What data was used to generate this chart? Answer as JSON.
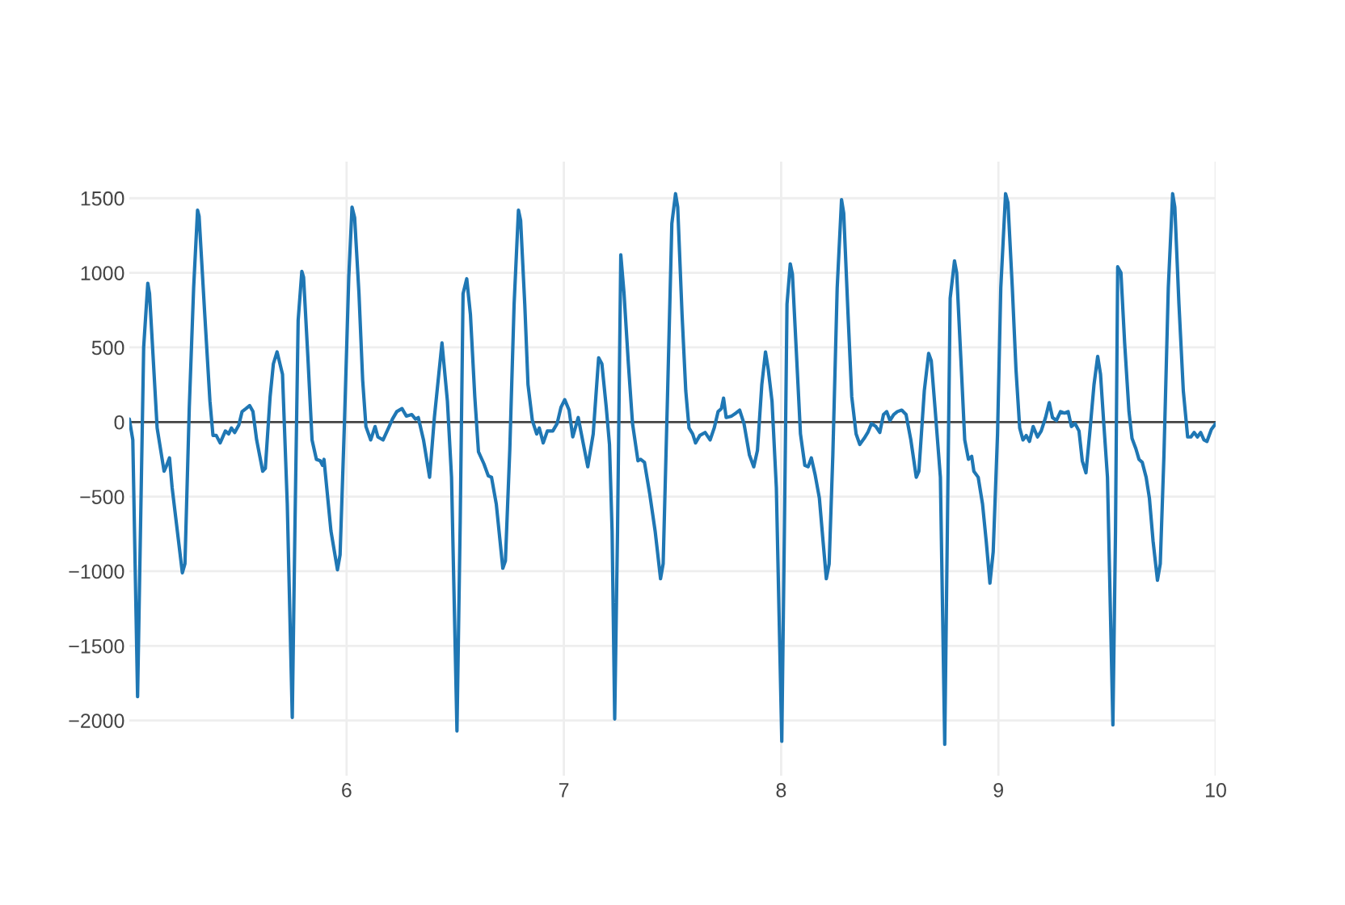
{
  "chart_data": {
    "type": "line",
    "color": "#1f77b4",
    "x": [
      5.0,
      5.016,
      5.038,
      5.066,
      5.085,
      5.093,
      5.128,
      5.16,
      5.172,
      5.185,
      5.197,
      5.244,
      5.256,
      5.276,
      5.296,
      5.314,
      5.321,
      5.346,
      5.371,
      5.385,
      5.4,
      5.418,
      5.442,
      5.457,
      5.47,
      5.485,
      5.504,
      5.519,
      5.537,
      5.554,
      5.569,
      5.586,
      5.614,
      5.626,
      5.648,
      5.663,
      5.68,
      5.705,
      5.727,
      5.75,
      5.762,
      5.777,
      5.794,
      5.802,
      5.822,
      5.841,
      5.861,
      5.879,
      5.889,
      5.896,
      5.928,
      5.958,
      5.97,
      5.99,
      6.01,
      6.025,
      6.037,
      6.057,
      6.074,
      6.089,
      6.111,
      6.131,
      6.144,
      6.168,
      6.193,
      6.211,
      6.231,
      6.255,
      6.275,
      6.3,
      6.317,
      6.33,
      6.354,
      6.382,
      6.404,
      6.439,
      6.464,
      6.483,
      6.508,
      6.523,
      6.536,
      6.553,
      6.57,
      6.59,
      6.607,
      6.632,
      6.652,
      6.667,
      6.689,
      6.719,
      6.731,
      6.751,
      6.771,
      6.791,
      6.801,
      6.82,
      6.835,
      6.855,
      6.875,
      6.887,
      6.905,
      6.924,
      6.949,
      6.969,
      6.987,
      7.004,
      7.024,
      7.041,
      7.066,
      7.086,
      7.11,
      7.135,
      7.16,
      7.175,
      7.195,
      7.21,
      7.222,
      7.234,
      7.247,
      7.262,
      7.277,
      7.297,
      7.316,
      7.341,
      7.353,
      7.371,
      7.395,
      7.42,
      7.445,
      7.457,
      7.477,
      7.497,
      7.514,
      7.524,
      7.544,
      7.561,
      7.576,
      7.593,
      7.606,
      7.626,
      7.65,
      7.673,
      7.692,
      7.71,
      7.725,
      7.735,
      7.747,
      7.772,
      7.792,
      7.809,
      7.829,
      7.854,
      7.874,
      7.891,
      7.911,
      7.928,
      7.941,
      7.958,
      7.978,
      8.003,
      8.015,
      8.027,
      8.042,
      8.052,
      8.069,
      8.089,
      8.109,
      8.124,
      8.139,
      8.156,
      8.176,
      8.193,
      8.208,
      8.221,
      8.238,
      8.258,
      8.278,
      8.288,
      8.308,
      8.325,
      8.345,
      8.362,
      8.382,
      8.399,
      8.416,
      8.436,
      8.454,
      8.471,
      8.486,
      8.501,
      8.518,
      8.535,
      8.555,
      8.575,
      8.597,
      8.622,
      8.634,
      8.659,
      8.679,
      8.691,
      8.708,
      8.733,
      8.753,
      8.765,
      8.778,
      8.798,
      8.808,
      8.827,
      8.845,
      8.862,
      8.877,
      8.887,
      8.907,
      8.927,
      8.944,
      8.961,
      8.976,
      8.996,
      9.011,
      9.033,
      9.044,
      9.064,
      9.081,
      9.098,
      9.113,
      9.128,
      9.143,
      9.16,
      9.18,
      9.197,
      9.217,
      9.234,
      9.249,
      9.267,
      9.286,
      9.304,
      9.321,
      9.336,
      9.353,
      9.371,
      9.386,
      9.403,
      9.42,
      9.44,
      9.457,
      9.47,
      9.485,
      9.502,
      9.527,
      9.539,
      9.549,
      9.564,
      9.581,
      9.601,
      9.615,
      9.633,
      9.647,
      9.662,
      9.68,
      9.695,
      9.712,
      9.732,
      9.745,
      9.762,
      9.782,
      9.802,
      9.812,
      9.831,
      9.851,
      9.871,
      9.886,
      9.901,
      9.916,
      9.931,
      9.946,
      9.96,
      9.98,
      10.0
    ],
    "values": [
      20,
      -120,
      -1840,
      500,
      930,
      860,
      -40,
      -330,
      -290,
      -240,
      -440,
      -1010,
      -950,
      100,
      900,
      1420,
      1380,
      750,
      140,
      -90,
      -90,
      -140,
      -60,
      -80,
      -40,
      -70,
      -20,
      70,
      90,
      110,
      70,
      -120,
      -330,
      -310,
      170,
      390,
      470,
      320,
      -550,
      -1980,
      -730,
      680,
      1010,
      970,
      430,
      -120,
      -250,
      -260,
      -290,
      -250,
      -730,
      -990,
      -890,
      -10,
      970,
      1440,
      1370,
      860,
      280,
      -30,
      -120,
      -30,
      -100,
      -120,
      -40,
      20,
      70,
      90,
      40,
      50,
      20,
      30,
      -120,
      -370,
      30,
      530,
      140,
      -370,
      -2070,
      -660,
      860,
      960,
      720,
      170,
      -200,
      -280,
      -360,
      -370,
      -550,
      -980,
      -930,
      -190,
      790,
      1420,
      1350,
      790,
      250,
      10,
      -80,
      -40,
      -140,
      -60,
      -60,
      -10,
      100,
      150,
      80,
      -100,
      30,
      -120,
      -300,
      -80,
      430,
      390,
      100,
      -150,
      -730,
      -1990,
      -730,
      1120,
      860,
      390,
      -10,
      -260,
      -250,
      -270,
      -480,
      -730,
      -1050,
      -950,
      170,
      1330,
      1530,
      1440,
      720,
      210,
      -40,
      -80,
      -140,
      -90,
      -70,
      -120,
      -40,
      70,
      90,
      160,
      30,
      40,
      60,
      80,
      -10,
      -220,
      -300,
      -190,
      250,
      470,
      350,
      140,
      -440,
      -2140,
      -730,
      790,
      1060,
      990,
      500,
      -80,
      -290,
      -300,
      -240,
      -350,
      -510,
      -800,
      -1050,
      -950,
      -220,
      900,
      1490,
      1400,
      720,
      170,
      -80,
      -150,
      -110,
      -70,
      -10,
      -30,
      -70,
      50,
      70,
      10,
      50,
      70,
      80,
      50,
      -120,
      -370,
      -330,
      210,
      460,
      410,
      100,
      -370,
      -2160,
      -730,
      830,
      1080,
      1000,
      430,
      -120,
      -250,
      -230,
      -330,
      -370,
      -550,
      -800,
      -1080,
      -870,
      -80,
      900,
      1530,
      1470,
      900,
      350,
      -40,
      -120,
      -90,
      -130,
      -30,
      -100,
      -60,
      30,
      130,
      30,
      10,
      70,
      60,
      70,
      -30,
      -10,
      -60,
      -260,
      -340,
      -80,
      250,
      440,
      320,
      -10,
      -370,
      -2030,
      -730,
      1040,
      1000,
      530,
      70,
      -110,
      -180,
      -250,
      -270,
      -370,
      -510,
      -800,
      -1060,
      -950,
      -220,
      900,
      1530,
      1440,
      790,
      210,
      -100,
      -100,
      -70,
      -100,
      -70,
      -120,
      -130,
      -50,
      -10
    ],
    "xlim": [
      5,
      10
    ],
    "xticks": [
      6,
      7,
      8,
      9,
      10
    ],
    "ylim": [
      -2370,
      1745
    ],
    "yticks": [
      {
        "value": -2000,
        "label": "−2000"
      },
      {
        "value": -1500,
        "label": "−1500"
      },
      {
        "value": -1000,
        "label": "−1000"
      },
      {
        "value": -500,
        "label": "−500"
      },
      0,
      500,
      1000,
      1500
    ],
    "grid": true,
    "ref_lines": [
      {
        "axis": "y",
        "value": 0,
        "color": "#444444"
      }
    ]
  }
}
